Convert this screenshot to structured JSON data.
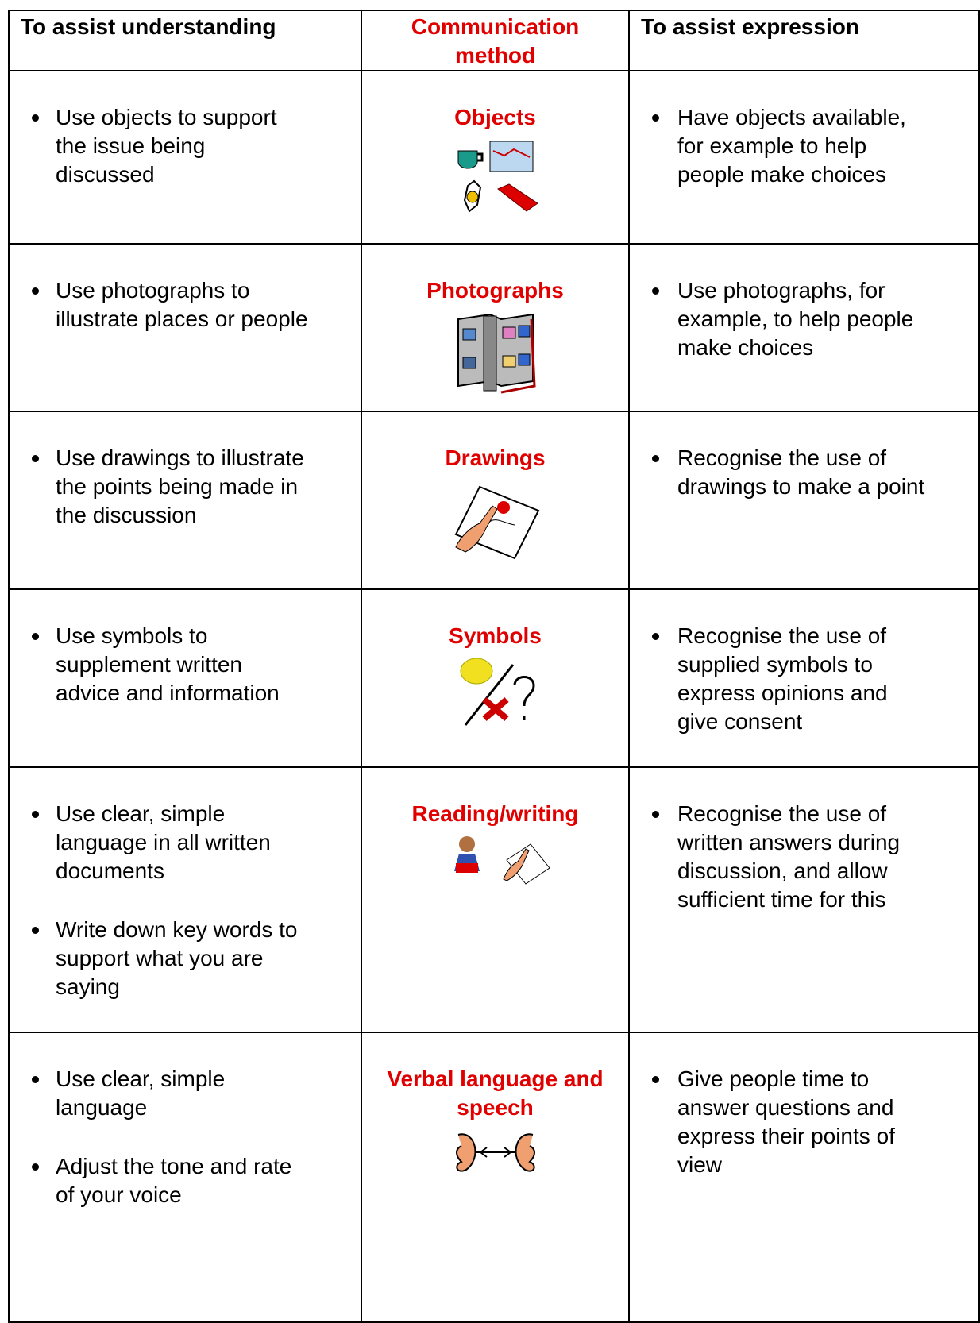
{
  "table": {
    "header": [
      "To assist understanding",
      "Communication method",
      "To assist expression"
    ],
    "rows": [
      {
        "understanding": [
          "Use objects to support the issue being discussed"
        ],
        "method": "Objects",
        "expression": [
          "Have objects available, for example to help people make choices"
        ]
      },
      {
        "understanding": [
          "Use photographs to illustrate places or people"
        ],
        "method": "Photographs",
        "expression": [
          "Use photographs, for example, to help people make choices"
        ]
      },
      {
        "understanding": [
          "Use drawings to illustrate the points being made in the discussion"
        ],
        "method": "Drawings",
        "expression": [
          "Recognise the use of drawings to make a point"
        ]
      },
      {
        "understanding": [
          "Use symbols to supplement written advice and information"
        ],
        "method": "Symbols",
        "expression": [
          "Recognise the use of supplied symbols to express opinions and give consent"
        ]
      },
      {
        "understanding": [
          "Use clear, simple language in all written documents",
          "Write down key words to support what you are saying"
        ],
        "method": "Reading/writing",
        "expression": [
          "Recognise the use of written answers during discussion, and allow sufficient time for this"
        ]
      },
      {
        "understanding": [
          "Use clear, simple language",
          "Adjust the tone and rate of your voice"
        ],
        "method": "Verbal language and speech",
        "expression": [
          "Give people time to answer questions and express their points of view"
        ]
      }
    ]
  }
}
